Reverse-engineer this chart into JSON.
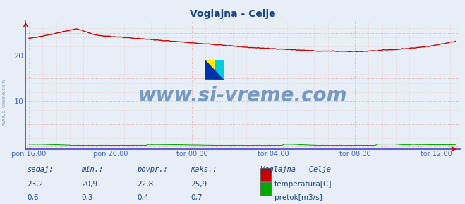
{
  "title": "Voglajna - Celje",
  "title_color": "#1a4480",
  "bg_color": "#e8eef5",
  "plot_bg_color": "#e8eef5",
  "grid_color": "#e8a0a0",
  "spine_color": "#4444cc",
  "x_tick_labels": [
    "pon 16:00",
    "pon 20:00",
    "tor 00:00",
    "tor 04:00",
    "tor 08:00",
    "tor 12:00"
  ],
  "x_tick_positions": [
    0,
    48,
    96,
    144,
    192,
    240
  ],
  "y_ticks": [
    10,
    20
  ],
  "ylim": [
    -0.5,
    27.5
  ],
  "xlim": [
    -2,
    254
  ],
  "temp_color": "#cc0000",
  "flow_color": "#00aa00",
  "watermark": "www.si-vreme.com",
  "watermark_color": "#1a5599",
  "watermark_alpha": 0.55,
  "legend_title": "Voglajna - Celje",
  "legend_title_color": "#1a4480",
  "label_color": "#1a4480",
  "sedaj_label": "sedaj:",
  "min_label": "min.:",
  "povpr_label": "povpr.:",
  "maks_label": "maks.:",
  "temp_row": [
    "23,2",
    "20,9",
    "22,8",
    "25,9"
  ],
  "flow_row": [
    "0,6",
    "0,3",
    "0,4",
    "0,7"
  ],
  "temp_legend": "temperatura[C]",
  "flow_legend": "pretok[m3/s]",
  "n_points": 252,
  "tick_color": "#4466bb",
  "watermark_fontsize": 20
}
